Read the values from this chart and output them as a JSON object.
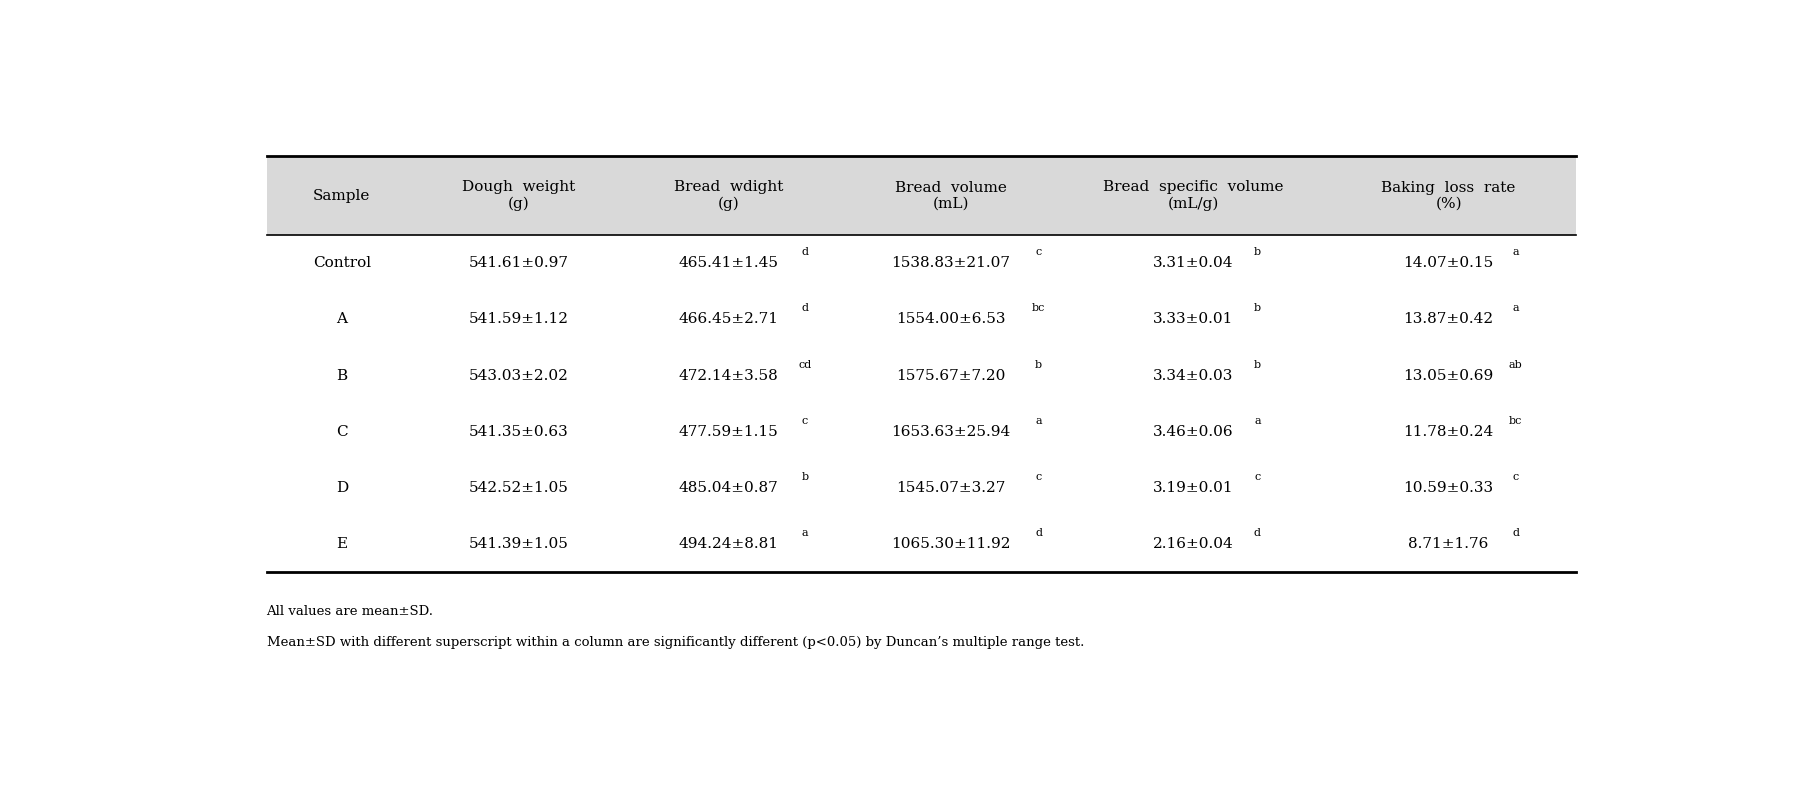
{
  "col_labels": [
    "Sample",
    "Dough  weight\n(g)",
    "Bread  wdight\n(g)",
    "Bread  volume\n(mL)",
    "Bread  specific  volume\n(mL/g)",
    "Baking  loss  rate\n(%)"
  ],
  "rows": [
    {
      "sample": "Control",
      "dough_weight": "541.61±0.97",
      "bread_weight": "465.41±1.45",
      "bread_weight_sup": "d",
      "bread_volume": "1538.83±21.07",
      "bread_volume_sup": "c",
      "specific_volume": "3.31±0.04",
      "specific_volume_sup": "b",
      "baking_loss": "14.07±0.15",
      "baking_loss_sup": "a"
    },
    {
      "sample": "A",
      "dough_weight": "541.59±1.12",
      "bread_weight": "466.45±2.71",
      "bread_weight_sup": "d",
      "bread_volume": "1554.00±6.53",
      "bread_volume_sup": "bc",
      "specific_volume": "3.33±0.01",
      "specific_volume_sup": "b",
      "baking_loss": "13.87±0.42",
      "baking_loss_sup": "a"
    },
    {
      "sample": "B",
      "dough_weight": "543.03±2.02",
      "bread_weight": "472.14±3.58",
      "bread_weight_sup": "cd",
      "bread_volume": "1575.67±7.20",
      "bread_volume_sup": "b",
      "specific_volume": "3.34±0.03",
      "specific_volume_sup": "b",
      "baking_loss": "13.05±0.69",
      "baking_loss_sup": "ab"
    },
    {
      "sample": "C",
      "dough_weight": "541.35±0.63",
      "bread_weight": "477.59±1.15",
      "bread_weight_sup": "c",
      "bread_volume": "1653.63±25.94",
      "bread_volume_sup": "a",
      "specific_volume": "3.46±0.06",
      "specific_volume_sup": "a",
      "baking_loss": "11.78±0.24",
      "baking_loss_sup": "bc"
    },
    {
      "sample": "D",
      "dough_weight": "542.52±1.05",
      "bread_weight": "485.04±0.87",
      "bread_weight_sup": "b",
      "bread_volume": "1545.07±3.27",
      "bread_volume_sup": "c",
      "specific_volume": "3.19±0.01",
      "specific_volume_sup": "c",
      "baking_loss": "10.59±0.33",
      "baking_loss_sup": "c"
    },
    {
      "sample": "E",
      "dough_weight": "541.39±1.05",
      "bread_weight": "494.24±8.81",
      "bread_weight_sup": "a",
      "bread_volume": "1065.30±11.92",
      "bread_volume_sup": "d",
      "specific_volume": "2.16±0.04",
      "specific_volume_sup": "d",
      "baking_loss": "8.71±1.76",
      "baking_loss_sup": "d"
    }
  ],
  "footnote1": "All values are mean±SD.",
  "footnote2": "Mean±SD with different superscript within a column are significantly different (p<0.05) by Duncan’s multiple range test.",
  "header_bg": "#d9d9d9",
  "text_color": "#000000",
  "header_fontsize": 11,
  "cell_fontsize": 11,
  "footnote_fontsize": 9.5,
  "col_weights": [
    0.115,
    0.155,
    0.165,
    0.175,
    0.195,
    0.195
  ]
}
